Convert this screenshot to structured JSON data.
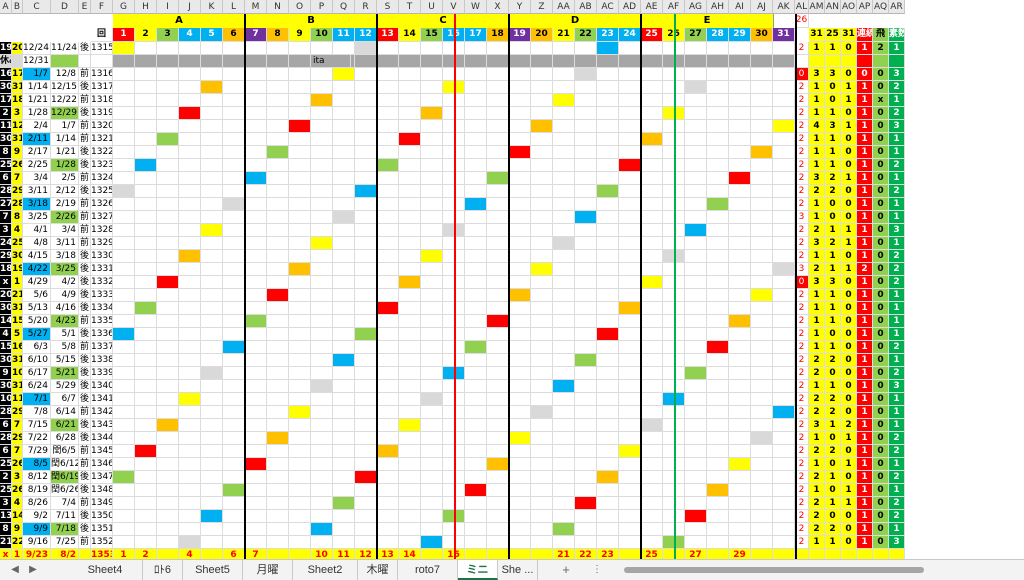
{
  "columns": [
    "A",
    "B",
    "C",
    "D",
    "E",
    "F",
    "G",
    "H",
    "I",
    "J",
    "K",
    "L",
    "M",
    "N",
    "O",
    "P",
    "Q",
    "R",
    "S",
    "T",
    "U",
    "V",
    "W",
    "X",
    "Y",
    "Z",
    "AA",
    "AB",
    "AC",
    "AD",
    "AE",
    "AF",
    "AG",
    "AH",
    "AI",
    "AJ",
    "AK",
    "AL",
    "AM",
    "AN",
    "AO",
    "AP",
    "AQ",
    "AR"
  ],
  "group_labels": {
    "A": "A",
    "B": "B",
    "C": "C",
    "D": "D",
    "E": "E",
    "corner": "26"
  },
  "header_row2": {
    "F": "回",
    "nums": [
      "1",
      "2",
      "3",
      "4",
      "5",
      "6",
      "7",
      "8",
      "9",
      "10",
      "11",
      "12",
      "13",
      "14",
      "15",
      "16",
      "17",
      "18",
      "19",
      "20",
      "21",
      "22",
      "23",
      "24",
      "25",
      "26",
      "27",
      "28",
      "29",
      "30",
      "31"
    ],
    "AM_top": "1~",
    "AN_top": "1~",
    "AO_top": "26~",
    "AM_bot": "31",
    "AN_bot": "25",
    "AO_bot": "31",
    "AP": "連続",
    "AQ": "飛",
    "AR": "素数"
  },
  "rows": [
    {
      "a": "19",
      "b": "20",
      "c": "12/24",
      "d": "11/24",
      "e": "後",
      "f": "1315",
      "al": "2",
      "am": "1",
      "an": "1",
      "ao": "0",
      "ap": "1",
      "aq": "2",
      "ar": "1"
    },
    {
      "a": "休み",
      "b": "",
      "c": "12/31",
      "d": "",
      "e": "",
      "f": "",
      "al": "",
      "am": "",
      "an": "",
      "ao": "",
      "ap": "",
      "aq": "",
      "ar": ""
    },
    {
      "a": "16",
      "b": "17",
      "c": "1/7",
      "d": "12/8",
      "e": "前",
      "f": "1316",
      "al": "0",
      "am": "3",
      "an": "3",
      "ao": "0",
      "ap": "0",
      "aq": "0",
      "ar": "3"
    },
    {
      "a": "30",
      "b": "31",
      "c": "1/14",
      "d": "12/15",
      "e": "後",
      "f": "1317",
      "al": "2",
      "am": "1",
      "an": "0",
      "ao": "1",
      "ap": "1",
      "aq": "0",
      "ar": "2"
    },
    {
      "a": "17",
      "b": "18",
      "c": "1/21",
      "d": "12/22",
      "e": "前",
      "f": "1318",
      "al": "2",
      "am": "1",
      "an": "0",
      "ao": "1",
      "ap": "1",
      "aq": "x",
      "ar": "1"
    },
    {
      "a": "2",
      "b": "3",
      "c": "1/28",
      "d": "12/29",
      "e": "後",
      "f": "1319",
      "al": "2",
      "am": "1",
      "an": "1",
      "ao": "0",
      "ap": "1",
      "aq": "0",
      "ar": "2"
    },
    {
      "a": "11",
      "b": "12",
      "c": "2/4",
      "d": "1/7",
      "e": "前",
      "f": "1320",
      "al": "2",
      "am": "4",
      "an": "3",
      "ao": "1",
      "ap": "1",
      "aq": "0",
      "ar": "3"
    },
    {
      "a": "30",
      "b": "31",
      "c": "2/11",
      "d": "1/14",
      "e": "前",
      "f": "1321",
      "al": "2",
      "am": "1",
      "an": "1",
      "ao": "0",
      "ap": "1",
      "aq": "0",
      "ar": "1"
    },
    {
      "a": "8",
      "b": "9",
      "c": "2/17",
      "d": "1/21",
      "e": "後",
      "f": "1322",
      "al": "2",
      "am": "1",
      "an": "1",
      "ao": "0",
      "ap": "1",
      "aq": "0",
      "ar": "1"
    },
    {
      "a": "25",
      "b": "26",
      "c": "2/25",
      "d": "1/28",
      "e": "後",
      "f": "1323",
      "al": "2",
      "am": "1",
      "an": "1",
      "ao": "0",
      "ap": "1",
      "aq": "0",
      "ar": "2"
    },
    {
      "a": "6",
      "b": "7",
      "c": "3/4",
      "d": "2/5",
      "e": "前",
      "f": "1324",
      "al": "2",
      "am": "3",
      "an": "2",
      "ao": "1",
      "ap": "1",
      "aq": "0",
      "ar": "1"
    },
    {
      "a": "28",
      "b": "29",
      "c": "3/11",
      "d": "2/12",
      "e": "後",
      "f": "1325",
      "al": "2",
      "am": "2",
      "an": "2",
      "ao": "0",
      "ap": "1",
      "aq": "0",
      "ar": "2"
    },
    {
      "a": "27",
      "b": "28",
      "c": "3/18",
      "d": "2/19",
      "e": "前",
      "f": "1326",
      "al": "2",
      "am": "1",
      "an": "0",
      "ao": "0",
      "ap": "1",
      "aq": "0",
      "ar": "1"
    },
    {
      "a": "7",
      "b": "8",
      "c": "3/25",
      "d": "2/26",
      "e": "前",
      "f": "1327",
      "al": "3",
      "am": "1",
      "an": "0",
      "ao": "0",
      "ap": "1",
      "aq": "0",
      "ar": "1"
    },
    {
      "a": "3",
      "b": "4",
      "c": "4/1",
      "d": "3/4",
      "e": "前",
      "f": "1328",
      "al": "2",
      "am": "2",
      "an": "1",
      "ao": "1",
      "ap": "1",
      "aq": "0",
      "ar": "3"
    },
    {
      "a": "24",
      "b": "25",
      "c": "4/8",
      "d": "3/11",
      "e": "前",
      "f": "1329",
      "al": "2",
      "am": "3",
      "an": "2",
      "ao": "1",
      "ap": "1",
      "aq": "0",
      "ar": "1"
    },
    {
      "a": "29",
      "b": "30",
      "c": "4/15",
      "d": "3/18",
      "e": "後",
      "f": "1330",
      "al": "2",
      "am": "1",
      "an": "1",
      "ao": "0",
      "ap": "1",
      "aq": "0",
      "ar": "2"
    },
    {
      "a": "18",
      "b": "19",
      "c": "4/22",
      "d": "3/25",
      "e": "後",
      "f": "1331",
      "al": "3",
      "am": "2",
      "an": "1",
      "ao": "1",
      "ap": "2",
      "aq": "0",
      "ar": "2"
    },
    {
      "a": "x",
      "b": "1",
      "c": "4/29",
      "d": "4/2",
      "e": "後",
      "f": "1332",
      "al": "0",
      "am": "3",
      "an": "3",
      "ao": "0",
      "ap": "1",
      "aq": "0",
      "ar": "2"
    },
    {
      "a": "20",
      "b": "21",
      "c": "5/6",
      "d": "4/9",
      "e": "後",
      "f": "1333",
      "al": "2",
      "am": "1",
      "an": "1",
      "ao": "0",
      "ap": "1",
      "aq": "0",
      "ar": "1"
    },
    {
      "a": "30",
      "b": "31",
      "c": "5/13",
      "d": "4/16",
      "e": "後",
      "f": "1334",
      "al": "2",
      "am": "1",
      "an": "1",
      "ao": "0",
      "ap": "1",
      "aq": "0",
      "ar": "1"
    },
    {
      "a": "14",
      "b": "15",
      "c": "5/20",
      "d": "4/23",
      "e": "前",
      "f": "1335",
      "al": "2",
      "am": "1",
      "an": "1",
      "ao": "0",
      "ap": "1",
      "aq": "0",
      "ar": "1"
    },
    {
      "a": "4",
      "b": "5",
      "c": "5/27",
      "d": "5/1",
      "e": "後",
      "f": "1336",
      "al": "2",
      "am": "1",
      "an": "0",
      "ao": "0",
      "ap": "1",
      "aq": "0",
      "ar": "1"
    },
    {
      "a": "15",
      "b": "16",
      "c": "6/3",
      "d": "5/8",
      "e": "前",
      "f": "1337",
      "al": "2",
      "am": "1",
      "an": "1",
      "ao": "0",
      "ap": "1",
      "aq": "0",
      "ar": "2"
    },
    {
      "a": "30",
      "b": "31",
      "c": "6/10",
      "d": "5/15",
      "e": "後",
      "f": "1338",
      "al": "2",
      "am": "2",
      "an": "2",
      "ao": "0",
      "ap": "1",
      "aq": "0",
      "ar": "1"
    },
    {
      "a": "9",
      "b": "10",
      "c": "6/17",
      "d": "5/21",
      "e": "後",
      "f": "1339",
      "al": "2",
      "am": "2",
      "an": "0",
      "ao": "0",
      "ap": "1",
      "aq": "0",
      "ar": "2"
    },
    {
      "a": "30",
      "b": "31",
      "c": "6/24",
      "d": "5/29",
      "e": "後",
      "f": "1340",
      "al": "2",
      "am": "1",
      "an": "1",
      "ao": "0",
      "ap": "1",
      "aq": "0",
      "ar": "3"
    },
    {
      "a": "10",
      "b": "11",
      "c": "7/1",
      "d": "6/7",
      "e": "後",
      "f": "1341",
      "al": "2",
      "am": "2",
      "an": "2",
      "ao": "0",
      "ap": "1",
      "aq": "0",
      "ar": "1"
    },
    {
      "a": "28",
      "b": "29",
      "c": "7/8",
      "d": "6/14",
      "e": "前",
      "f": "1342",
      "al": "2",
      "am": "2",
      "an": "2",
      "ao": "0",
      "ap": "1",
      "aq": "0",
      "ar": "1"
    },
    {
      "a": "6",
      "b": "7",
      "c": "7/15",
      "d": "6/21",
      "e": "後",
      "f": "1343",
      "al": "2",
      "am": "3",
      "an": "1",
      "ao": "2",
      "ap": "1",
      "aq": "0",
      "ar": "1"
    },
    {
      "a": "28",
      "b": "29",
      "c": "7/22",
      "d": "6/28",
      "e": "後",
      "f": "1344",
      "al": "2",
      "am": "1",
      "an": "0",
      "ao": "1",
      "ap": "1",
      "aq": "0",
      "ar": "2"
    },
    {
      "a": "6",
      "b": "7",
      "c": "7/29",
      "d": "閏6/5",
      "e": "前",
      "f": "1345",
      "al": "2",
      "am": "2",
      "an": "2",
      "ao": "0",
      "ap": "1",
      "aq": "0",
      "ar": "2"
    },
    {
      "a": "25",
      "b": "26",
      "c": "8/5",
      "d": "閏6/12",
      "e": "前",
      "f": "1346",
      "al": "2",
      "am": "1",
      "an": "0",
      "ao": "1",
      "ap": "1",
      "aq": "0",
      "ar": "1"
    },
    {
      "a": "2",
      "b": "3",
      "c": "8/12",
      "d": "閏6/19",
      "e": "後",
      "f": "1347",
      "al": "2",
      "am": "2",
      "an": "1",
      "ao": "0",
      "ap": "1",
      "aq": "0",
      "ar": "2"
    },
    {
      "a": "25",
      "b": "26",
      "c": "8/19",
      "d": "閏6/26",
      "e": "後",
      "f": "1348",
      "al": "2",
      "am": "1",
      "an": "0",
      "ao": "1",
      "ap": "1",
      "aq": "0",
      "ar": "1"
    },
    {
      "a": "3",
      "b": "4",
      "c": "8/26",
      "d": "7/4",
      "e": "前",
      "f": "1349",
      "al": "2",
      "am": "2",
      "an": "1",
      "ao": "1",
      "ap": "1",
      "aq": "0",
      "ar": "2"
    },
    {
      "a": "13",
      "b": "14",
      "c": "9/2",
      "d": "7/11",
      "e": "後",
      "f": "1350",
      "al": "2",
      "am": "2",
      "an": "0",
      "ao": "0",
      "ap": "1",
      "aq": "0",
      "ar": "2"
    },
    {
      "a": "8",
      "b": "9",
      "c": "9/9",
      "d": "7/18",
      "e": "後",
      "f": "1351",
      "al": "2",
      "am": "2",
      "an": "2",
      "ao": "0",
      "ap": "1",
      "aq": "0",
      "ar": "1"
    },
    {
      "a": "21",
      "b": "22",
      "c": "9/16",
      "d": "7/25",
      "e": "前",
      "f": "1352",
      "al": "2",
      "am": "1",
      "an": "1",
      "ao": "0",
      "ap": "1",
      "aq": "0",
      "ar": "3"
    }
  ],
  "footer": {
    "a": "x",
    "b": "1",
    "c": "9/23",
    "d": "8/2",
    "f": "1353",
    "nums": [
      "1",
      "2",
      "4",
      "6",
      "7",
      "10",
      "11",
      "12",
      "13",
      "14",
      "16",
      "21",
      "22",
      "23",
      "25",
      "27",
      "29"
    ]
  },
  "tabs": [
    {
      "label": "Sheet4"
    },
    {
      "label": "ﾛﾄ6"
    },
    {
      "label": "Sheet5"
    },
    {
      "label": "月曜"
    },
    {
      "label": "Sheet2"
    },
    {
      "label": "木曜"
    },
    {
      "label": "roto7"
    },
    {
      "label": "ミニ"
    },
    {
      "label": "She ..."
    }
  ],
  "misc": {
    "ita": "ita",
    "add_sheet": "+",
    "more": "⋮",
    "nav_left": "◀",
    "nav_right": "▶"
  },
  "colors": {
    "yellow": "#ffff00",
    "orange": "#ffc000",
    "red": "#ff0000",
    "green": "#92d050",
    "blue": "#00b0f0",
    "purple": "#7030a0",
    "gray": "#808080",
    "lightgray": "#d9d9d9",
    "black": "#000000"
  }
}
